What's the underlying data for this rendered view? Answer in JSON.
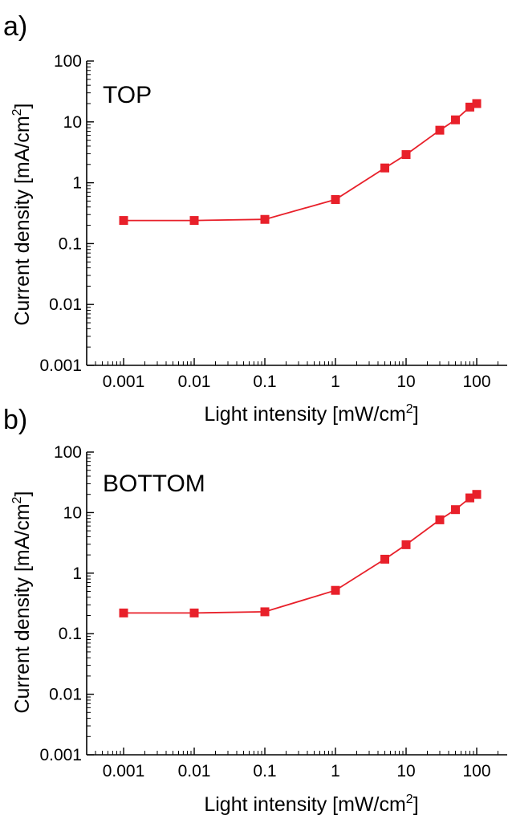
{
  "figure": {
    "panels": [
      {
        "letter": "a)",
        "title": "TOP",
        "xlabel": "Light intensity [mW/cm",
        "xlabel_sup": "2",
        "xlabel_end": "]",
        "ylabel": "Current density [mA/cm",
        "ylabel_sup": "2",
        "ylabel_end": "]"
      },
      {
        "letter": "b)",
        "title": "BOTTOM",
        "xlabel": "Light intensity [mW/cm",
        "xlabel_sup": "2",
        "xlabel_end": "]",
        "ylabel": "Current density [mA/cm",
        "ylabel_sup": "2",
        "ylabel_end": "]"
      }
    ]
  },
  "chart_data": [
    {
      "type": "line",
      "title": "TOP",
      "xlabel": "Light intensity [mW/cm2]",
      "ylabel": "Current density [mA/cm2]",
      "xscale": "log",
      "yscale": "log",
      "xlim": [
        0.0003,
        300
      ],
      "ylim": [
        0.001,
        100
      ],
      "xticks": [
        "0.001",
        "0.01",
        "0.1",
        "1",
        "10",
        "100"
      ],
      "yticks": [
        "0.001",
        "0.01",
        "0.1",
        "1",
        "10",
        "100"
      ],
      "grid": false,
      "marker": "square",
      "color": "#e8202a",
      "series": [
        {
          "x": [
            0.001,
            0.01,
            0.1,
            1,
            5,
            10,
            30,
            50,
            80,
            100
          ],
          "y": [
            0.24,
            0.24,
            0.25,
            0.53,
            1.75,
            2.9,
            7.3,
            10.8,
            17.5,
            20.0
          ]
        }
      ]
    },
    {
      "type": "line",
      "title": "BOTTOM",
      "xlabel": "Light intensity [mW/cm2]",
      "ylabel": "Current density [mA/cm2]",
      "xscale": "log",
      "yscale": "log",
      "xlim": [
        0.0003,
        300
      ],
      "ylim": [
        0.001,
        100
      ],
      "xticks": [
        "0.001",
        "0.01",
        "0.1",
        "1",
        "10",
        "100"
      ],
      "yticks": [
        "0.001",
        "0.01",
        "0.1",
        "1",
        "10",
        "100"
      ],
      "grid": false,
      "marker": "square",
      "color": "#e8202a",
      "series": [
        {
          "x": [
            0.001,
            0.01,
            0.1,
            1,
            5,
            10,
            30,
            50,
            80,
            100
          ],
          "y": [
            0.22,
            0.22,
            0.23,
            0.52,
            1.7,
            2.95,
            7.6,
            11.2,
            17.5,
            20.0
          ]
        }
      ]
    }
  ]
}
